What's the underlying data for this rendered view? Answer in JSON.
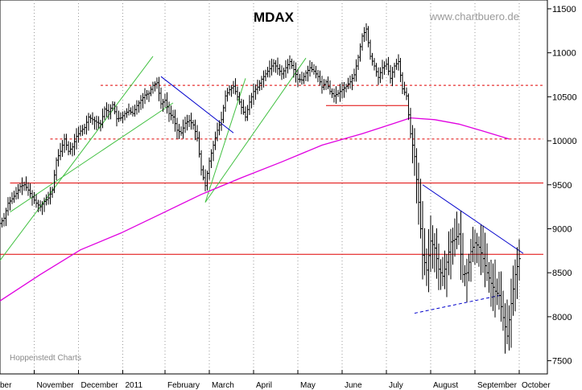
{
  "chart_data": {
    "type": "line",
    "subtype": "ohlc-bar",
    "title": "MDAX",
    "source_label": "www.chartbuero.de",
    "credit_label": "Hoppenstedt Charts",
    "yaxis": {
      "position": "right",
      "ylim": [
        7350,
        11600
      ],
      "ticks": [
        7500,
        8000,
        8500,
        9000,
        9500,
        10000,
        10500,
        11000,
        11500
      ]
    },
    "xaxis": {
      "tick_labels": [
        "ber",
        "November",
        "December",
        "2011",
        "February",
        "March",
        "April",
        "May",
        "June",
        "July",
        "August",
        "September",
        "October"
      ],
      "tick_t": [
        0,
        17,
        39,
        61,
        82,
        104,
        126,
        148,
        170,
        192,
        214,
        236,
        258
      ]
    },
    "grid": {
      "vertical": true,
      "style": "dotted"
    },
    "colors": {
      "bars": "#000000",
      "moving_average": "#e000e0",
      "resistance": "#e00000",
      "uptrend": "#40c040",
      "downtrend": "#0000cc"
    },
    "series": [
      {
        "name": "",
        "kind": "price",
        "points": [
          [
            0,
            9060
          ],
          [
            2,
            9120
          ],
          [
            4,
            9290
          ],
          [
            6,
            9340
          ],
          [
            8,
            9400
          ],
          [
            10,
            9480
          ],
          [
            12,
            9500
          ],
          [
            14,
            9440
          ],
          [
            16,
            9360
          ],
          [
            18,
            9290
          ],
          [
            20,
            9250
          ],
          [
            22,
            9310
          ],
          [
            24,
            9350
          ],
          [
            26,
            9440
          ],
          [
            28,
            9780
          ],
          [
            30,
            9880
          ],
          [
            32,
            10020
          ],
          [
            34,
            9880
          ],
          [
            36,
            9930
          ],
          [
            38,
            10050
          ],
          [
            40,
            10110
          ],
          [
            42,
            10150
          ],
          [
            44,
            10270
          ],
          [
            46,
            10240
          ],
          [
            48,
            10210
          ],
          [
            50,
            10190
          ],
          [
            52,
            10360
          ],
          [
            54,
            10330
          ],
          [
            56,
            10410
          ],
          [
            58,
            10250
          ],
          [
            60,
            10260
          ],
          [
            62,
            10310
          ],
          [
            64,
            10340
          ],
          [
            66,
            10310
          ],
          [
            68,
            10400
          ],
          [
            70,
            10460
          ],
          [
            72,
            10520
          ],
          [
            74,
            10540
          ],
          [
            76,
            10630
          ],
          [
            78,
            10660
          ],
          [
            80,
            10420
          ],
          [
            82,
            10460
          ],
          [
            84,
            10310
          ],
          [
            86,
            10270
          ],
          [
            88,
            10120
          ],
          [
            90,
            10090
          ],
          [
            92,
            10200
          ],
          [
            94,
            10230
          ],
          [
            96,
            10180
          ],
          [
            98,
            10030
          ],
          [
            100,
            9670
          ],
          [
            102,
            9490
          ],
          [
            104,
            9770
          ],
          [
            106,
            9950
          ],
          [
            108,
            10120
          ],
          [
            110,
            10240
          ],
          [
            112,
            10510
          ],
          [
            114,
            10580
          ],
          [
            116,
            10620
          ],
          [
            118,
            10500
          ],
          [
            120,
            10380
          ],
          [
            122,
            10270
          ],
          [
            124,
            10440
          ],
          [
            126,
            10560
          ],
          [
            128,
            10610
          ],
          [
            130,
            10700
          ],
          [
            132,
            10760
          ],
          [
            134,
            10820
          ],
          [
            136,
            10880
          ],
          [
            138,
            10820
          ],
          [
            140,
            10760
          ],
          [
            142,
            10830
          ],
          [
            144,
            10900
          ],
          [
            146,
            10810
          ],
          [
            148,
            10700
          ],
          [
            150,
            10690
          ],
          [
            152,
            10770
          ],
          [
            154,
            10830
          ],
          [
            156,
            10790
          ],
          [
            158,
            10730
          ],
          [
            160,
            10610
          ],
          [
            162,
            10670
          ],
          [
            164,
            10560
          ],
          [
            166,
            10510
          ],
          [
            168,
            10540
          ],
          [
            170,
            10580
          ],
          [
            172,
            10620
          ],
          [
            174,
            10670
          ],
          [
            176,
            10750
          ],
          [
            178,
            10950
          ],
          [
            180,
            11190
          ],
          [
            182,
            11270
          ],
          [
            184,
            10960
          ],
          [
            186,
            10850
          ],
          [
            188,
            10720
          ],
          [
            190,
            10830
          ],
          [
            192,
            10870
          ],
          [
            194,
            10710
          ],
          [
            196,
            10850
          ],
          [
            198,
            10900
          ],
          [
            200,
            10590
          ],
          [
            202,
            10510
          ],
          [
            204,
            10080
          ],
          [
            206,
            9820
          ],
          [
            208,
            9300
          ],
          [
            210,
            8700
          ],
          [
            212,
            8530
          ],
          [
            214,
            8860
          ],
          [
            216,
            8780
          ],
          [
            218,
            8540
          ],
          [
            220,
            8460
          ],
          [
            222,
            8620
          ],
          [
            224,
            8850
          ],
          [
            226,
            8880
          ],
          [
            228,
            8940
          ],
          [
            230,
            8480
          ],
          [
            232,
            8500
          ],
          [
            234,
            8740
          ],
          [
            236,
            8840
          ],
          [
            238,
            8790
          ],
          [
            240,
            8660
          ],
          [
            242,
            8500
          ],
          [
            244,
            8380
          ],
          [
            246,
            8290
          ],
          [
            248,
            8240
          ],
          [
            250,
            7990
          ],
          [
            252,
            7780
          ],
          [
            254,
            8150
          ],
          [
            256,
            8480
          ],
          [
            258,
            8660
          ]
        ]
      },
      {
        "name": "",
        "kind": "moving-average",
        "points": [
          [
            0,
            8180
          ],
          [
            20,
            8480
          ],
          [
            40,
            8760
          ],
          [
            60,
            8950
          ],
          [
            80,
            9170
          ],
          [
            100,
            9390
          ],
          [
            120,
            9580
          ],
          [
            140,
            9760
          ],
          [
            160,
            9950
          ],
          [
            180,
            10080
          ],
          [
            196,
            10200
          ],
          [
            204,
            10260
          ],
          [
            216,
            10240
          ],
          [
            228,
            10190
          ],
          [
            240,
            10110
          ],
          [
            253,
            10020
          ]
        ]
      }
    ],
    "horizontal_lines": [
      {
        "y": 10630,
        "style": "dashed",
        "t_from": 50,
        "t_to": 270
      },
      {
        "y": 10020,
        "style": "dashed",
        "t_from": 25,
        "t_to": 270
      },
      {
        "y": 9520,
        "style": "solid",
        "t_from": 5,
        "t_to": 270
      },
      {
        "y": 8710,
        "style": "solid",
        "t_from": 0,
        "t_to": 270
      },
      {
        "y": 10400,
        "style": "solid",
        "t_from": 162,
        "t_to": 203
      }
    ],
    "trendlines": [
      {
        "kind": "uptrend",
        "style": "solid",
        "from": [
          0,
          8640
        ],
        "to": [
          76,
          10960
        ]
      },
      {
        "kind": "uptrend",
        "style": "solid",
        "from": [
          5,
          9190
        ],
        "to": [
          86,
          10430
        ]
      },
      {
        "kind": "uptrend",
        "style": "solid",
        "from": [
          102,
          9300
        ],
        "to": [
          122,
          10710
        ]
      },
      {
        "kind": "uptrend",
        "style": "solid",
        "from": [
          102,
          9300
        ],
        "to": [
          152,
          10940
        ]
      },
      {
        "kind": "downtrend",
        "style": "solid",
        "from": [
          80,
          10730
        ],
        "to": [
          116,
          10090
        ]
      },
      {
        "kind": "downtrend",
        "style": "solid",
        "from": [
          210,
          9500
        ],
        "to": [
          260,
          8720
        ]
      },
      {
        "kind": "downtrend",
        "style": "dashed",
        "from": [
          206,
          8040
        ],
        "to": [
          250,
          8250
        ]
      }
    ]
  }
}
